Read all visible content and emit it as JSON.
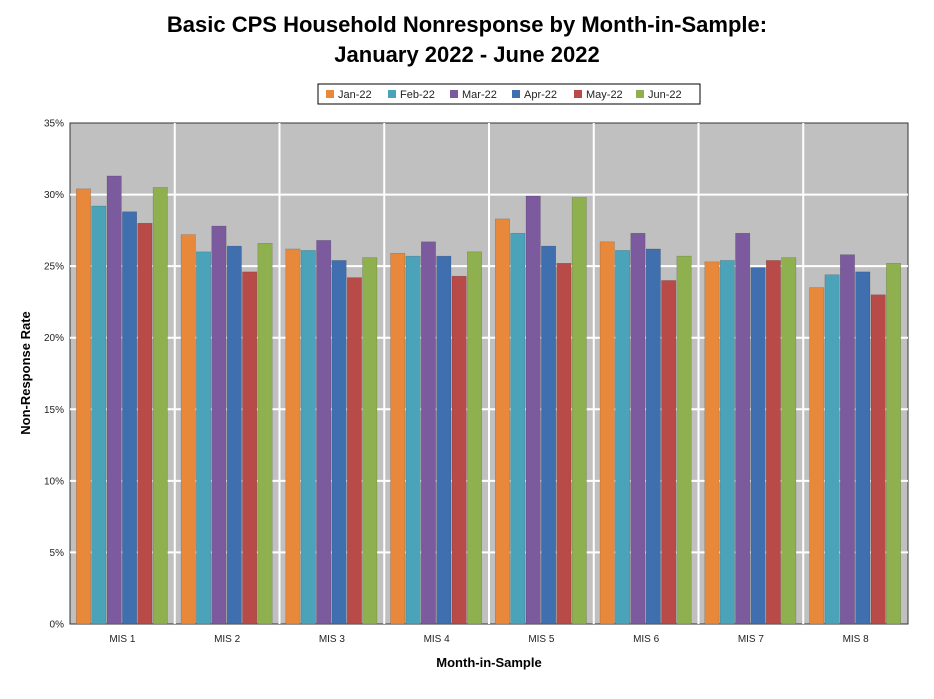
{
  "chart_data": {
    "type": "bar",
    "title": [
      "Basic CPS Household Nonresponse by Month-in-Sample:",
      "January 2022 - June 2022"
    ],
    "xlabel": "Month-in-Sample",
    "ylabel": "Non-Response Rate",
    "categories": [
      "MIS 1",
      "MIS 2",
      "MIS 3",
      "MIS 4",
      "MIS 5",
      "MIS 6",
      "MIS 7",
      "MIS 8"
    ],
    "y_ticks": [
      "0%",
      "5%",
      "10%",
      "15%",
      "20%",
      "25%",
      "30%",
      "35%"
    ],
    "ylim": [
      0,
      35
    ],
    "y_unit": "percent",
    "grid": true,
    "legend_position": "top",
    "series": [
      {
        "name": "Jan-22",
        "color": "#E8883A",
        "values": [
          30.4,
          27.2,
          26.2,
          25.9,
          28.3,
          26.7,
          25.3,
          23.5
        ]
      },
      {
        "name": "Feb-22",
        "color": "#4BA3B9",
        "values": [
          29.2,
          26.0,
          26.1,
          25.7,
          27.3,
          26.1,
          25.4,
          24.4
        ]
      },
      {
        "name": "Mar-22",
        "color": "#7B5A9E",
        "values": [
          31.3,
          27.8,
          26.8,
          26.7,
          29.9,
          27.3,
          27.3,
          25.8
        ]
      },
      {
        "name": "Apr-22",
        "color": "#3F6FAF",
        "values": [
          28.8,
          26.4,
          25.4,
          25.7,
          26.4,
          26.2,
          24.9,
          24.6
        ]
      },
      {
        "name": "May-22",
        "color": "#B84A48",
        "values": [
          28.0,
          24.6,
          24.2,
          24.3,
          25.2,
          24.0,
          25.4,
          23.0
        ]
      },
      {
        "name": "Jun-22",
        "color": "#8FB04E",
        "values": [
          30.5,
          26.6,
          25.6,
          26.0,
          29.8,
          25.7,
          25.6,
          25.2
        ]
      }
    ]
  },
  "colors": {
    "plot_background": "#C0C0C0",
    "gridline": "#FFFFFF",
    "legend_border": "#000000"
  }
}
